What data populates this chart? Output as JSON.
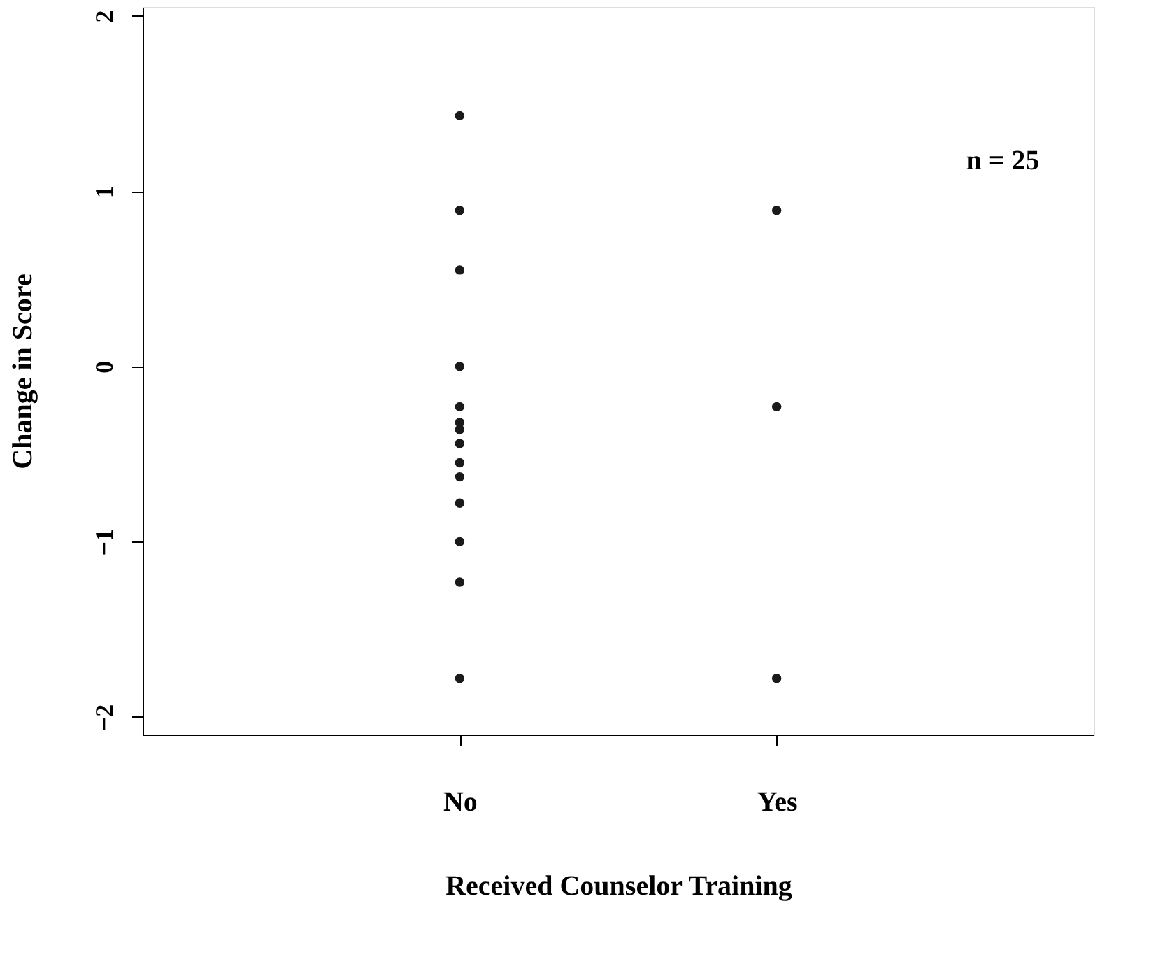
{
  "chart_data": {
    "type": "scatter",
    "xlabel": "Received Counselor Training",
    "ylabel": "Change in Score",
    "categories": [
      "No",
      "Yes"
    ],
    "series": [
      {
        "color": "#1a1a1a",
        "x": [
          "No",
          "No",
          "No",
          "No",
          "No",
          "No",
          "No",
          "No",
          "No",
          "No",
          "No",
          "No",
          "No",
          "No",
          "Yes",
          "Yes",
          "Yes"
        ],
        "values": [
          1.43,
          0.89,
          0.55,
          0,
          -0.23,
          -0.32,
          -0.36,
          -0.44,
          -0.55,
          -0.63,
          -0.78,
          -1.0,
          -1.23,
          -1.78,
          0.89,
          -0.23,
          -1.78
        ]
      }
    ],
    "ylim": [
      -2.1,
      2.05
    ],
    "yticks": [
      -2,
      -1,
      0,
      1,
      2
    ],
    "grid": false,
    "legend": false,
    "marker": "circle",
    "annotations": [
      "n = 25"
    ]
  }
}
